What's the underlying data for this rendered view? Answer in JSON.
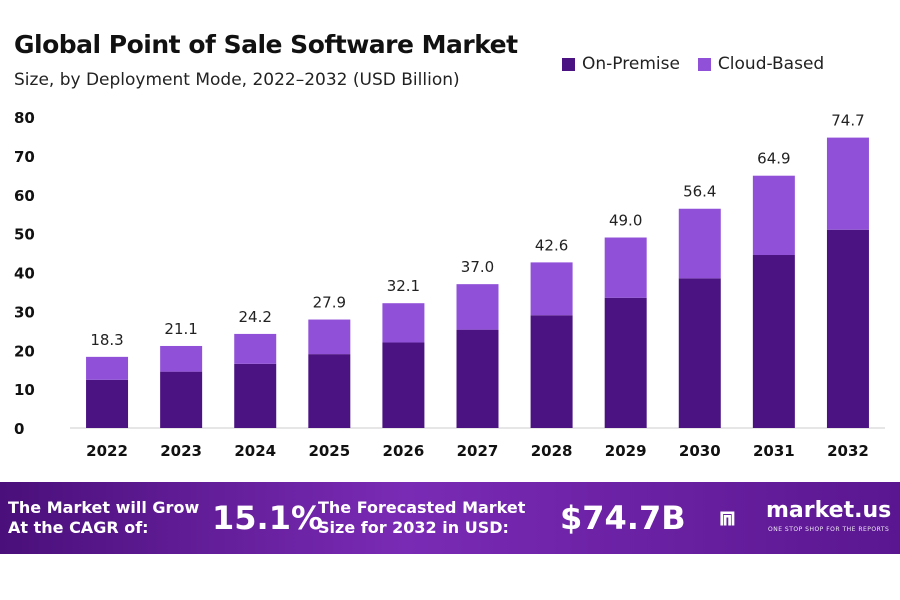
{
  "header": {
    "title": "Global Point of Sale Software Market",
    "subtitle": "Size, by Deployment Mode, 2022–2032 (USD Billion)"
  },
  "legend": [
    {
      "label": "On-Premise",
      "color": "#4b1382"
    },
    {
      "label": "Cloud-Based",
      "color": "#9150d8"
    }
  ],
  "chart_data": {
    "type": "bar",
    "stacked": true,
    "categories": [
      "2022",
      "2023",
      "2024",
      "2025",
      "2026",
      "2027",
      "2028",
      "2029",
      "2030",
      "2031",
      "2032"
    ],
    "series": [
      {
        "name": "On-Premise",
        "color": "#4b1382",
        "values": [
          12.4,
          14.5,
          16.5,
          19.0,
          22.0,
          25.3,
          29.0,
          33.5,
          38.5,
          44.5,
          51.0
        ]
      },
      {
        "name": "Cloud-Based",
        "color": "#9150d8",
        "values": [
          5.9,
          6.6,
          7.7,
          8.9,
          10.1,
          11.7,
          13.6,
          15.5,
          17.9,
          20.4,
          23.7
        ]
      }
    ],
    "totals": [
      "18.3",
      "21.1",
      "24.2",
      "27.9",
      "32.1",
      "37.0",
      "42.6",
      "49.0",
      "56.4",
      "64.9",
      "74.7"
    ],
    "yticks": [
      0,
      10,
      20,
      30,
      40,
      50,
      60,
      70,
      80
    ],
    "ylim": [
      0,
      80
    ],
    "grid": false,
    "legend_position": "top-right"
  },
  "banner": {
    "cagr_text_line1": "The Market will Grow",
    "cagr_text_line2": "At the CAGR of:",
    "cagr_value": "15.1%",
    "forecast_text_line1": "The Forecasted Market",
    "forecast_text_line2": "Size for 2032 in USD:",
    "forecast_value": "$74.7B",
    "logo_name": "market.us",
    "logo_tagline": "ONE STOP SHOP FOR THE REPORTS"
  }
}
